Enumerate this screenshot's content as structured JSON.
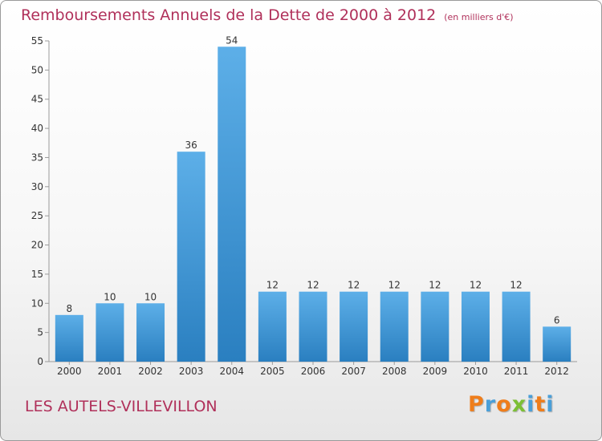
{
  "header": {
    "title": "Remboursements Annuels de la Dette de 2000 à 2012",
    "subtitle": "(en milliers d'€)"
  },
  "footer": {
    "commune": "LES AUTELS-VILLEVILLON",
    "logo_text": "Proxiti"
  },
  "colors": {
    "title": "#b0305a",
    "bar_light": "#5dafe8",
    "bar_dark": "#2a7fc0",
    "logo": [
      "#ef7d1a",
      "#4a9fd8",
      "#ef7d1a",
      "#7cbf35",
      "#4a9fd8",
      "#ef7d1a",
      "#4a9fd8"
    ]
  },
  "chart_data": {
    "type": "bar",
    "title": "Remboursements Annuels de la Dette de 2000 à 2012",
    "subtitle": "(en milliers d'€)",
    "xlabel": "",
    "ylabel": "",
    "categories": [
      "2000",
      "2001",
      "2002",
      "2003",
      "2004",
      "2005",
      "2006",
      "2007",
      "2008",
      "2009",
      "2010",
      "2011",
      "2012"
    ],
    "values": [
      8,
      10,
      10,
      36,
      54,
      12,
      12,
      12,
      12,
      12,
      12,
      12,
      6
    ],
    "ylim": [
      0,
      55
    ],
    "yticks": [
      0,
      5,
      10,
      15,
      20,
      25,
      30,
      35,
      40,
      45,
      50,
      55
    ],
    "grid": false,
    "legend": "none"
  }
}
